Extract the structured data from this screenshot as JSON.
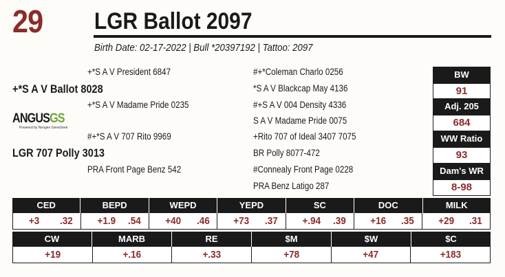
{
  "lot_number": "29",
  "title": "LGR Ballot 2097",
  "subline": "Birth Date: 02-17-2022  |  Bull *20397192  |  Tattoo: 2097",
  "logo": {
    "word": "ANGUS",
    "suffix": "GS",
    "tagline": "Powered by Neogen GeneSeek"
  },
  "pedigree": {
    "sire": "+*S A V Ballot 8028",
    "sire_sire": "+*S A V President 6847",
    "sire_dam": "+*S A V Madame Pride 0235",
    "dam": "LGR 707 Polly 3013",
    "dam_sire": "#+*S A V 707 Rito 9969",
    "dam_dam": "PRA Front Page Benz 542",
    "ss_sire": "#+*Coleman Charlo 0256",
    "ss_dam": "*S A V Blackcap May 4136",
    "sd_sire": "#+S A V 004 Density 4336",
    "sd_dam": "S A V Madame Pride 0075",
    "ds_sire": "+Rito 707 of Ideal 3407 7075",
    "ds_dam": "BR Polly 8077-472",
    "dd_sire": "#Connealy Front Page 0228",
    "dd_dam": "PRA Benz Latigo 287"
  },
  "side_stats": [
    {
      "label": "BW",
      "value": "91"
    },
    {
      "label": "Adj. 205",
      "value": "684"
    },
    {
      "label": "WW Ratio",
      "value": "93"
    },
    {
      "label": "Dam's WR",
      "value": "8-98"
    }
  ],
  "epds_row1": [
    {
      "label": "CED",
      "epd": "+3",
      "acc": ".32"
    },
    {
      "label": "BEPD",
      "epd": "+1.9",
      "acc": ".54"
    },
    {
      "label": "WEPD",
      "epd": "+40",
      "acc": ".46"
    },
    {
      "label": "YEPD",
      "epd": "+73",
      "acc": ".37"
    },
    {
      "label": "SC",
      "epd": "+.94",
      "acc": ".39"
    },
    {
      "label": "DOC",
      "epd": "+16",
      "acc": ".35"
    },
    {
      "label": "MILK",
      "epd": "+29",
      "acc": ".31"
    }
  ],
  "epds_row2": [
    {
      "label": "CW",
      "value": "+19"
    },
    {
      "label": "MARB",
      "value": "+.16"
    },
    {
      "label": "RE",
      "value": "+.33"
    },
    {
      "label": "$M",
      "value": "+78"
    },
    {
      "label": "$W",
      "value": "+47"
    },
    {
      "label": "$C",
      "value": "+183"
    }
  ]
}
